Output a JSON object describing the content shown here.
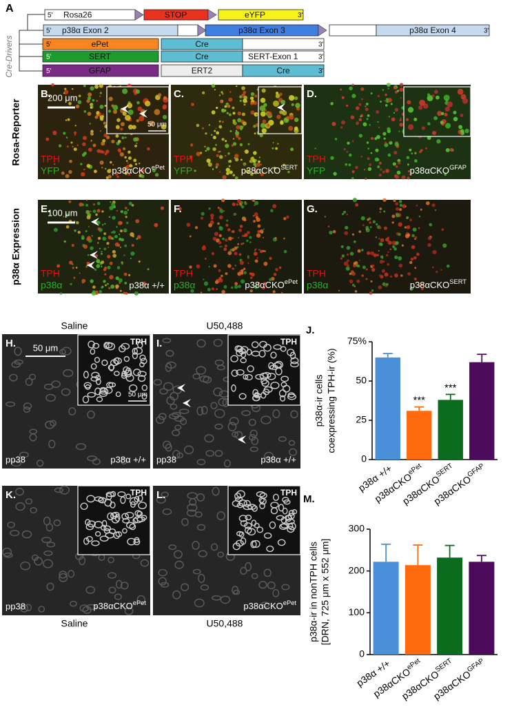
{
  "construct_diagram": {
    "label": "A",
    "cre_drivers_label": "Cre-Drivers",
    "rows": [
      {
        "five": "5'",
        "segments": [
          "Rosa26",
          "STOP",
          "eYFP"
        ],
        "three": "3'"
      },
      {
        "five": "5'",
        "segments": [
          "p38α Exon 2",
          "p38α Exon 3",
          "p38α Exon 4"
        ],
        "three": "3'"
      },
      {
        "five": "5'",
        "segments": [
          "ePet",
          "Cre"
        ],
        "three": "3'"
      },
      {
        "five": "5'",
        "segments": [
          "SERT",
          "Cre",
          "SERT-Exon 1"
        ],
        "three": "3'"
      },
      {
        "five": "5'",
        "segments": [
          "GFAP",
          "ERT2",
          "Cre"
        ],
        "three": "3'"
      }
    ]
  },
  "micrographs": {
    "row_labels": [
      "Rosa-Reporter",
      "p38α Expression"
    ],
    "panels": [
      {
        "label": "B.",
        "stain": [
          "TPH",
          "YFP"
        ],
        "genotype": {
          "base": "p38αCKO",
          "sup": "ePet"
        },
        "scale_bar": "200 μm",
        "inset_scale_bar": "50 μm"
      },
      {
        "label": "C.",
        "stain": [
          "TPH",
          "YFP"
        ],
        "genotype": {
          "base": "p38αCKO",
          "sup": "SERT"
        }
      },
      {
        "label": "D.",
        "stain": [
          "TPH",
          "YFP"
        ],
        "genotype": {
          "base": "p38αCKO",
          "sup": "GFAP"
        }
      },
      {
        "label": "E.",
        "stain": [
          "TPH",
          "p38α"
        ],
        "genotype": "p38α +/+",
        "scale_bar": "100 μm"
      },
      {
        "label": "F.",
        "stain": [
          "TPH",
          "p38α"
        ],
        "genotype": {
          "base": "p38αCKO",
          "sup": "ePet"
        }
      },
      {
        "label": "G.",
        "stain": [
          "TPH",
          "p38α"
        ],
        "genotype": {
          "base": "p38αCKO",
          "sup": "SERT"
        }
      }
    ]
  },
  "immunostaining": {
    "conditions_top": [
      "Saline",
      "U50,488"
    ],
    "conditions_bottom": [
      "Saline",
      "U50,488"
    ],
    "panels": [
      {
        "label": "H.",
        "inset": "TPH",
        "stain": "pp38",
        "genotype": "p38α +/+",
        "scale_bar": "50 μm",
        "inset_scale_bar": "50 μm"
      },
      {
        "label": "I.",
        "inset": "TPH",
        "stain": "pp38",
        "genotype": "p38α +/+"
      },
      {
        "label": "K.",
        "inset": "TPH",
        "stain": "pp38",
        "genotype": {
          "base": "p38αCKO",
          "sup": "ePet"
        }
      },
      {
        "label": "L.",
        "inset": "TPH",
        "genotype": {
          "base": "p38αCKO",
          "sup": "ePet"
        }
      }
    ]
  },
  "chart_data": [
    {
      "type": "bar",
      "label": "J.",
      "y_label": [
        "p38α-ir  cells",
        "coexpressing TPH-ir (%)"
      ],
      "categories": [
        "p38α +/+",
        {
          "base": "p38αCKO",
          "sup": "ePet"
        },
        {
          "base": "p38αCKO",
          "sup": "SERT"
        },
        {
          "base": "p38αCKO",
          "sup": "GFAP"
        }
      ],
      "values": [
        65,
        31,
        38,
        62
      ],
      "errors": [
        2.5,
        2.5,
        3.5,
        5
      ],
      "colors": [
        "#4a90d9",
        "#ff6a0e",
        "#0b6b1e",
        "#4b0a5c"
      ],
      "significance": [
        {
          "index": 1,
          "text": "***"
        },
        {
          "index": 2,
          "text": "***"
        }
      ],
      "ylim": [
        0,
        75
      ],
      "yticks": [
        0,
        25,
        50,
        {
          "value": 75,
          "label": "75%"
        }
      ]
    },
    {
      "type": "bar",
      "label": "M.",
      "y_label": [
        "p38α-ir  in nonTPH cells",
        "[DRN, 725 μm x 552 μm]"
      ],
      "categories": [
        "p38α +/+",
        {
          "base": "p38αCKO",
          "sup": "ePet"
        },
        {
          "base": "p38αCKO",
          "sup": "SERT"
        },
        {
          "base": "p38αCKO",
          "sup": "GFAP"
        }
      ],
      "values": [
        222,
        214,
        232,
        222
      ],
      "errors": [
        42,
        48,
        29,
        15
      ],
      "colors": [
        "#4a90d9",
        "#ff6a0e",
        "#0b6b1e",
        "#4b0a5c"
      ],
      "ylim": [
        0,
        300
      ],
      "yticks": [
        0,
        100,
        200,
        300
      ]
    }
  ]
}
